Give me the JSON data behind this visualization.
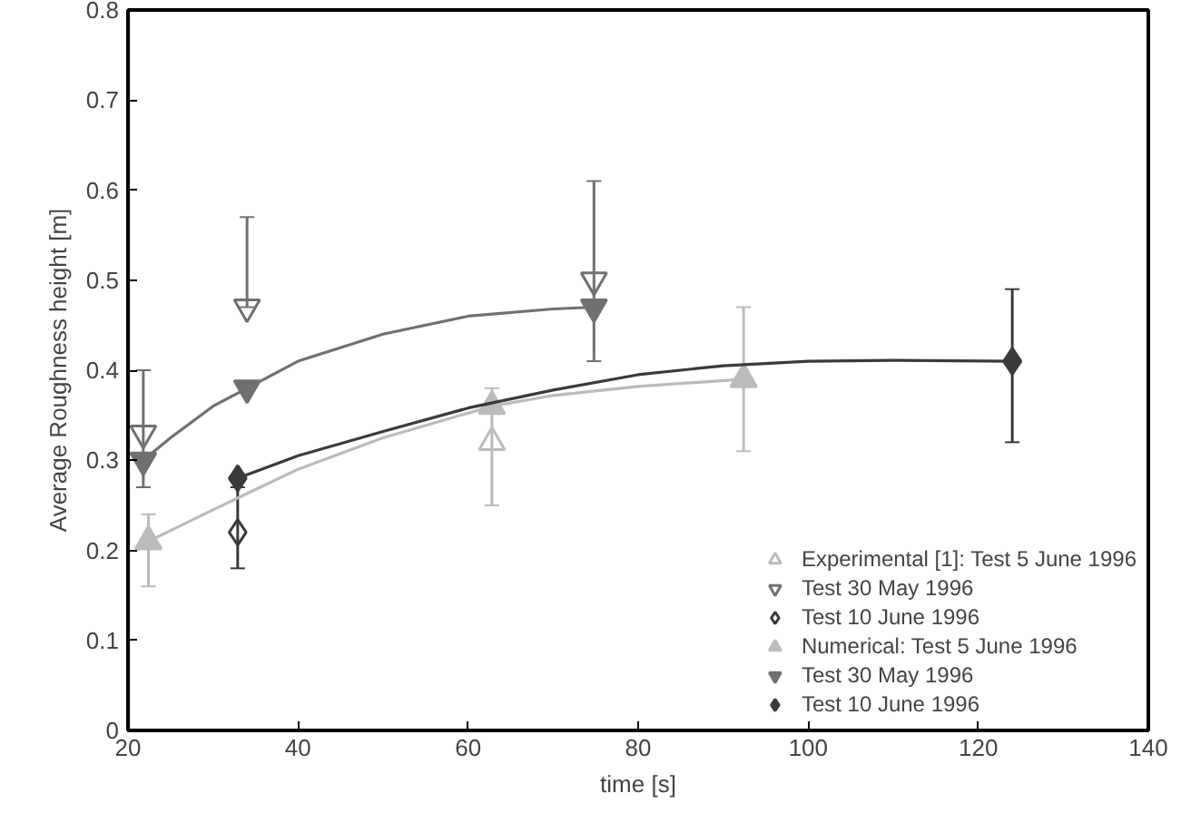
{
  "chart_data": {
    "type": "scatter",
    "xlabel": "time [s]",
    "ylabel": "Average Roughness height [m]",
    "xlim": [
      20,
      140
    ],
    "ylim": [
      0,
      0.8
    ],
    "xticks": [
      20,
      40,
      60,
      80,
      100,
      120,
      140
    ],
    "yticks": [
      0,
      0.1,
      0.2,
      0.3,
      0.4,
      0.5,
      0.6,
      0.7,
      0.8
    ],
    "grid": false,
    "legend": "bottom right",
    "series": [
      {
        "name": "Experimental [1]: Test 5 June 1996",
        "marker": "triangle",
        "color": "#bbbbbb",
        "x": [
          22.4,
          62.8,
          92.4
        ],
        "values": [
          0.21,
          0.32,
          0.39
        ],
        "errors": [
          [
            0.16,
            0.24
          ],
          [
            0.25,
            0.38
          ],
          [
            0.31,
            0.47
          ]
        ]
      },
      {
        "name": "Test 30 May 1996",
        "marker": "triangle_down",
        "color": "#707070",
        "x": [
          21.8,
          34,
          74.8
        ],
        "values": [
          0.33,
          0.47,
          0.5
        ],
        "errors": [
          [
            0.27,
            0.4
          ],
          [
            0.47,
            0.57
          ],
          [
            0.41,
            0.61
          ]
        ]
      },
      {
        "name": "Test 10 June 1996",
        "marker": "diamond",
        "color": "#3a3a3a",
        "x": [
          32.9,
          124
        ],
        "values": [
          0.22,
          0.41
        ],
        "errors": [
          [
            0.18,
            0.27
          ],
          [
            0.32,
            0.49
          ]
        ]
      },
      {
        "name": "Numerical: Test 5 June 1996",
        "marker": "triangle",
        "color": "#bbbbbb",
        "x": [
          22.4,
          62.8,
          92.4
        ],
        "values": [
          0.21,
          0.36,
          0.39
        ]
      },
      {
        "name": "Test 30 May 1996",
        "marker": "triangle_down",
        "color": "#707070",
        "x": [
          21.8,
          34,
          74.8
        ],
        "values": [
          0.3,
          0.38,
          0.47
        ]
      },
      {
        "name": "Test 10 June 1996",
        "marker": "diamond",
        "color": "#3a3a3a",
        "x": [
          32.9,
          124
        ],
        "values": [
          0.28,
          0.41
        ]
      },
      {
        "type": "line",
        "color": "#bbbbbb",
        "x": [
          22.4,
          30,
          40,
          50,
          62.8,
          70,
          80,
          92.4
        ],
        "values": [
          0.21,
          0.245,
          0.29,
          0.325,
          0.36,
          0.372,
          0.382,
          0.39
        ]
      },
      {
        "type": "line",
        "color": "#707070",
        "x": [
          21.8,
          25,
          30,
          34,
          40,
          50,
          60,
          70,
          74.8
        ],
        "values": [
          0.3,
          0.325,
          0.36,
          0.38,
          0.41,
          0.44,
          0.46,
          0.468,
          0.47
        ]
      },
      {
        "type": "line",
        "color": "#3a3a3a",
        "x": [
          32.9,
          40,
          50,
          60,
          70,
          80,
          90,
          100,
          110,
          124
        ],
        "values": [
          0.28,
          0.305,
          0.332,
          0.358,
          0.378,
          0.395,
          0.405,
          0.41,
          0.411,
          0.41
        ]
      }
    ]
  }
}
